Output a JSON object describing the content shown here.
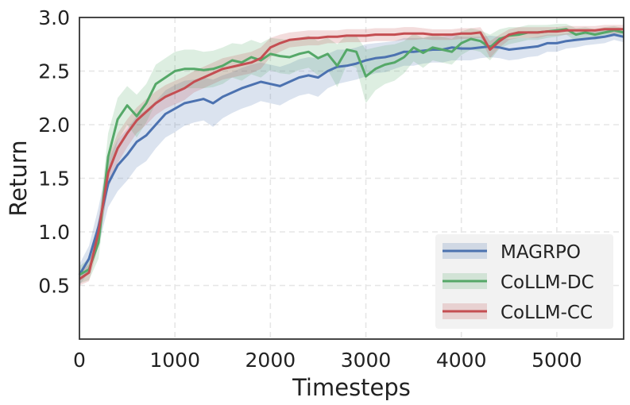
{
  "chart_data": {
    "type": "line",
    "title": "",
    "xlabel": "Timesteps",
    "ylabel": "Return",
    "xlim": [
      0,
      5700
    ],
    "ylim": [
      0.0,
      3.0
    ],
    "xticks": [
      0,
      1000,
      2000,
      3000,
      4000,
      5000
    ],
    "yticks": [
      0.5,
      1.0,
      1.5,
      2.0,
      2.5,
      3.0
    ],
    "xtick_labels": [
      "0",
      "1000",
      "2000",
      "3000",
      "4000",
      "5000"
    ],
    "ytick_labels": [
      "0.5",
      "1.0",
      "1.5",
      "2.0",
      "2.5",
      "3.0"
    ],
    "grid": true,
    "legend_position": "bottom-right",
    "series": [
      {
        "name": "MAGRPO",
        "color": "#4c72b0",
        "x": [
          0,
          100,
          200,
          300,
          400,
          500,
          600,
          700,
          800,
          900,
          1000,
          1100,
          1200,
          1300,
          1400,
          1500,
          1600,
          1700,
          1800,
          1900,
          2000,
          2100,
          2200,
          2300,
          2400,
          2500,
          2600,
          2700,
          2800,
          2900,
          3000,
          3100,
          3200,
          3300,
          3400,
          3500,
          3600,
          3700,
          3800,
          3900,
          4000,
          4100,
          4200,
          4300,
          4400,
          4500,
          4600,
          4700,
          4800,
          4900,
          5000,
          5100,
          5200,
          5300,
          5400,
          5500,
          5600,
          5700
        ],
        "y": [
          0.6,
          0.75,
          1.05,
          1.45,
          1.62,
          1.72,
          1.84,
          1.9,
          2.0,
          2.1,
          2.15,
          2.2,
          2.22,
          2.24,
          2.2,
          2.26,
          2.3,
          2.34,
          2.37,
          2.4,
          2.38,
          2.36,
          2.4,
          2.44,
          2.46,
          2.44,
          2.5,
          2.54,
          2.55,
          2.57,
          2.6,
          2.62,
          2.63,
          2.65,
          2.68,
          2.68,
          2.69,
          2.7,
          2.7,
          2.72,
          2.71,
          2.71,
          2.72,
          2.73,
          2.72,
          2.7,
          2.71,
          2.72,
          2.73,
          2.76,
          2.76,
          2.78,
          2.79,
          2.8,
          2.81,
          2.82,
          2.84,
          2.82
        ],
        "band": [
          0.1,
          0.12,
          0.18,
          0.22,
          0.24,
          0.24,
          0.24,
          0.24,
          0.22,
          0.22,
          0.22,
          0.21,
          0.2,
          0.2,
          0.22,
          0.2,
          0.19,
          0.19,
          0.19,
          0.18,
          0.18,
          0.18,
          0.17,
          0.17,
          0.17,
          0.18,
          0.16,
          0.16,
          0.15,
          0.15,
          0.15,
          0.14,
          0.14,
          0.13,
          0.13,
          0.13,
          0.12,
          0.12,
          0.12,
          0.12,
          0.11,
          0.11,
          0.1,
          0.1,
          0.1,
          0.1,
          0.1,
          0.09,
          0.09,
          0.08,
          0.08,
          0.07,
          0.07,
          0.06,
          0.06,
          0.06,
          0.05,
          0.05
        ]
      },
      {
        "name": "CoLLM-DC",
        "color": "#55a868",
        "x": [
          0,
          100,
          200,
          300,
          400,
          500,
          600,
          700,
          800,
          900,
          1000,
          1100,
          1200,
          1300,
          1400,
          1500,
          1600,
          1700,
          1800,
          1900,
          2000,
          2100,
          2200,
          2300,
          2400,
          2500,
          2600,
          2700,
          2800,
          2900,
          3000,
          3100,
          3200,
          3300,
          3400,
          3500,
          3600,
          3700,
          3800,
          3900,
          4000,
          4100,
          4200,
          4300,
          4400,
          4500,
          4600,
          4700,
          4800,
          4900,
          5000,
          5100,
          5200,
          5300,
          5400,
          5500,
          5600,
          5700
        ],
        "y": [
          0.6,
          0.65,
          0.9,
          1.7,
          2.05,
          2.18,
          2.08,
          2.2,
          2.38,
          2.44,
          2.5,
          2.52,
          2.52,
          2.51,
          2.52,
          2.55,
          2.6,
          2.58,
          2.63,
          2.6,
          2.66,
          2.64,
          2.63,
          2.66,
          2.68,
          2.62,
          2.66,
          2.55,
          2.7,
          2.68,
          2.45,
          2.52,
          2.56,
          2.58,
          2.63,
          2.72,
          2.67,
          2.72,
          2.7,
          2.68,
          2.76,
          2.8,
          2.78,
          2.72,
          2.8,
          2.83,
          2.84,
          2.86,
          2.86,
          2.87,
          2.88,
          2.89,
          2.84,
          2.86,
          2.84,
          2.86,
          2.88,
          2.86
        ],
        "band": [
          0.08,
          0.1,
          0.15,
          0.22,
          0.2,
          0.18,
          0.2,
          0.18,
          0.18,
          0.18,
          0.18,
          0.18,
          0.18,
          0.17,
          0.17,
          0.17,
          0.16,
          0.17,
          0.16,
          0.16,
          0.15,
          0.16,
          0.16,
          0.15,
          0.15,
          0.16,
          0.15,
          0.2,
          0.14,
          0.15,
          0.25,
          0.2,
          0.18,
          0.17,
          0.15,
          0.13,
          0.14,
          0.12,
          0.12,
          0.12,
          0.11,
          0.1,
          0.1,
          0.12,
          0.09,
          0.08,
          0.07,
          0.07,
          0.07,
          0.06,
          0.06,
          0.05,
          0.06,
          0.05,
          0.05,
          0.05,
          0.04,
          0.04
        ]
      },
      {
        "name": "CoLLM-CC",
        "color": "#c44e52",
        "x": [
          0,
          100,
          200,
          300,
          400,
          500,
          600,
          700,
          800,
          900,
          1000,
          1100,
          1200,
          1300,
          1400,
          1500,
          1600,
          1700,
          1800,
          1900,
          2000,
          2100,
          2200,
          2300,
          2400,
          2500,
          2600,
          2700,
          2800,
          2900,
          3000,
          3100,
          3200,
          3300,
          3400,
          3500,
          3600,
          3700,
          3800,
          3900,
          4000,
          4100,
          4200,
          4300,
          4400,
          4500,
          4600,
          4700,
          4800,
          4900,
          5000,
          5100,
          5200,
          5300,
          5400,
          5500,
          5600,
          5700
        ],
        "y": [
          0.56,
          0.62,
          1.0,
          1.55,
          1.78,
          1.92,
          2.04,
          2.12,
          2.2,
          2.26,
          2.3,
          2.34,
          2.4,
          2.44,
          2.48,
          2.52,
          2.54,
          2.56,
          2.58,
          2.62,
          2.72,
          2.76,
          2.79,
          2.8,
          2.81,
          2.81,
          2.82,
          2.82,
          2.83,
          2.83,
          2.83,
          2.84,
          2.84,
          2.84,
          2.85,
          2.85,
          2.85,
          2.84,
          2.84,
          2.84,
          2.85,
          2.85,
          2.86,
          2.7,
          2.78,
          2.84,
          2.86,
          2.86,
          2.86,
          2.87,
          2.87,
          2.88,
          2.88,
          2.88,
          2.88,
          2.89,
          2.89,
          2.89
        ],
        "band": [
          0.06,
          0.08,
          0.12,
          0.15,
          0.14,
          0.13,
          0.12,
          0.12,
          0.11,
          0.11,
          0.11,
          0.11,
          0.1,
          0.1,
          0.1,
          0.1,
          0.1,
          0.1,
          0.1,
          0.1,
          0.09,
          0.08,
          0.07,
          0.07,
          0.07,
          0.07,
          0.06,
          0.06,
          0.06,
          0.06,
          0.06,
          0.06,
          0.06,
          0.06,
          0.06,
          0.06,
          0.05,
          0.05,
          0.05,
          0.05,
          0.05,
          0.05,
          0.05,
          0.08,
          0.06,
          0.05,
          0.05,
          0.05,
          0.05,
          0.04,
          0.04,
          0.04,
          0.04,
          0.04,
          0.04,
          0.04,
          0.04,
          0.04
        ]
      }
    ]
  }
}
